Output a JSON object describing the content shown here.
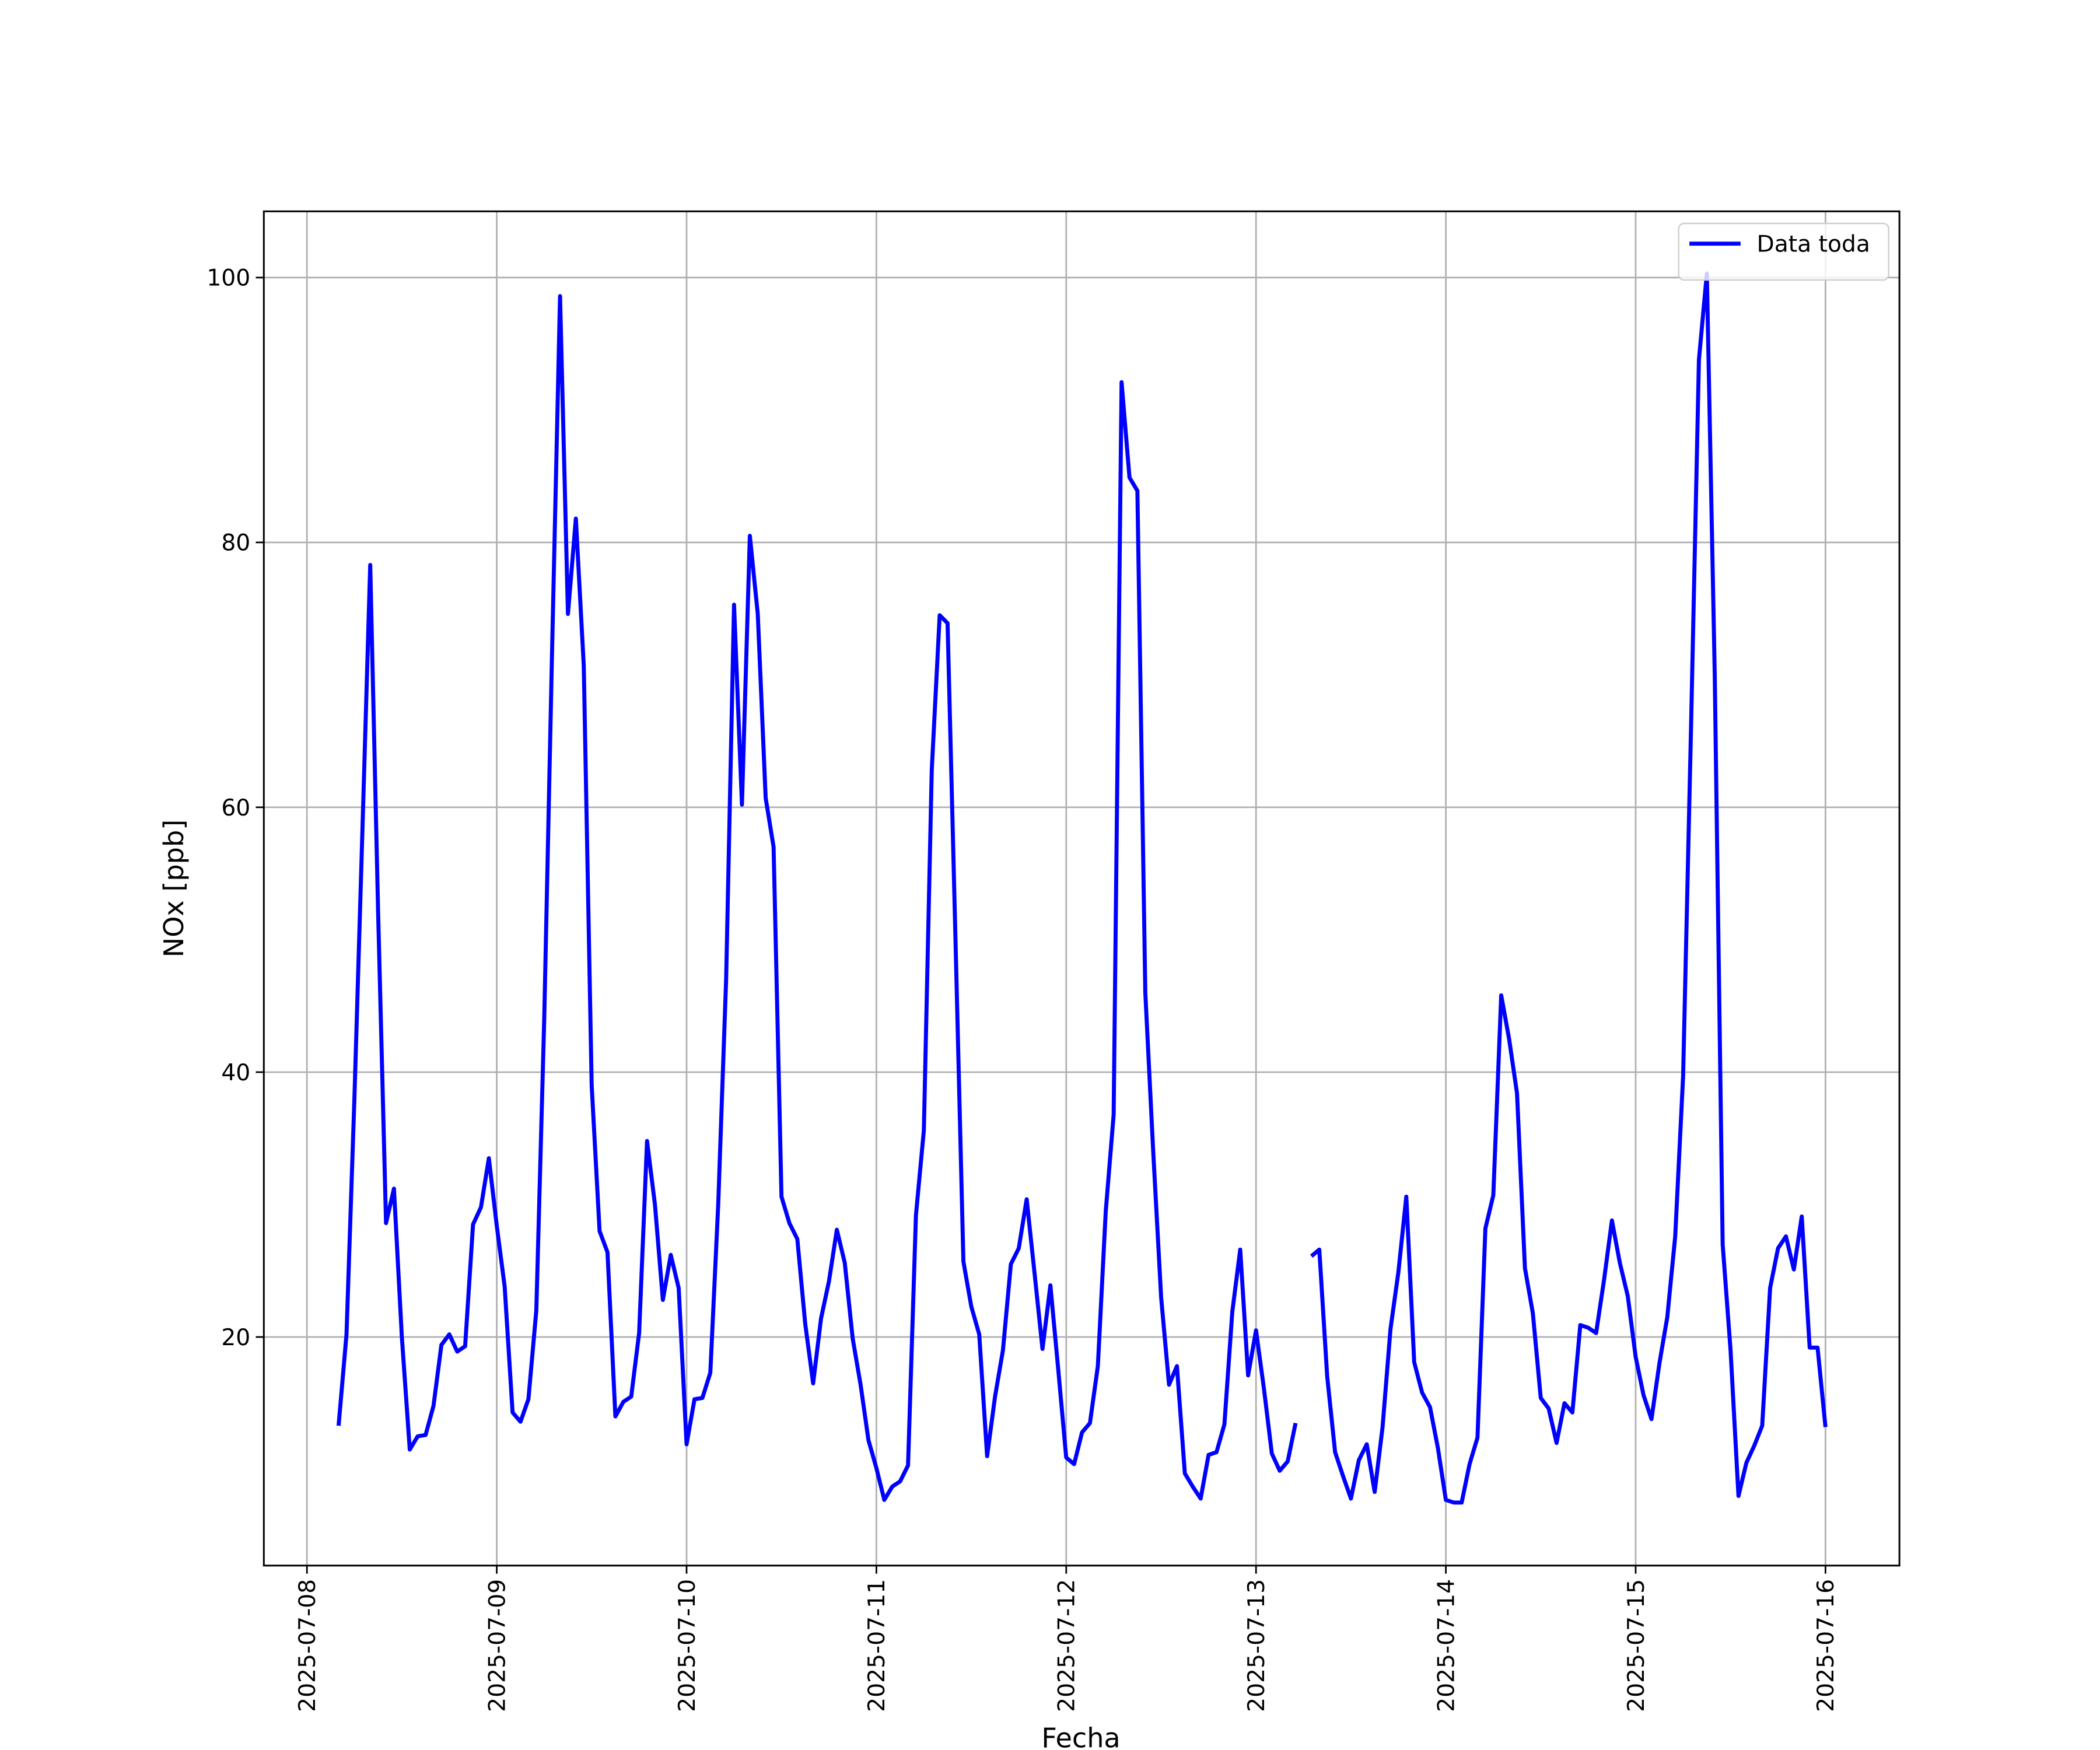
{
  "chart_data": {
    "type": "line",
    "xlabel": "Fecha",
    "ylabel": "NOx [ppb]",
    "x": [
      "2025-07-08 04:00",
      "2025-07-08 05:00",
      "2025-07-08 06:00",
      "2025-07-08 07:00",
      "2025-07-08 08:00",
      "2025-07-08 09:00",
      "2025-07-08 10:00",
      "2025-07-08 11:00",
      "2025-07-08 12:00",
      "2025-07-08 13:00",
      "2025-07-08 14:00",
      "2025-07-08 15:00",
      "2025-07-08 16:00",
      "2025-07-08 17:00",
      "2025-07-08 18:00",
      "2025-07-08 19:00",
      "2025-07-08 20:00",
      "2025-07-08 21:00",
      "2025-07-08 22:00",
      "2025-07-08 23:00",
      "2025-07-09 00:00",
      "2025-07-09 01:00",
      "2025-07-09 02:00",
      "2025-07-09 03:00",
      "2025-07-09 04:00",
      "2025-07-09 05:00",
      "2025-07-09 06:00",
      "2025-07-09 07:00",
      "2025-07-09 08:00",
      "2025-07-09 09:00",
      "2025-07-09 10:00",
      "2025-07-09 11:00",
      "2025-07-09 12:00",
      "2025-07-09 13:00",
      "2025-07-09 14:00",
      "2025-07-09 15:00",
      "2025-07-09 16:00",
      "2025-07-09 17:00",
      "2025-07-09 18:00",
      "2025-07-09 19:00",
      "2025-07-09 20:00",
      "2025-07-09 21:00",
      "2025-07-09 22:00",
      "2025-07-09 23:00",
      "2025-07-10 00:00",
      "2025-07-10 01:00",
      "2025-07-10 02:00",
      "2025-07-10 03:00",
      "2025-07-10 04:00",
      "2025-07-10 05:00",
      "2025-07-10 06:00",
      "2025-07-10 07:00",
      "2025-07-10 08:00",
      "2025-07-10 09:00",
      "2025-07-10 10:00",
      "2025-07-10 11:00",
      "2025-07-10 12:00",
      "2025-07-10 13:00",
      "2025-07-10 14:00",
      "2025-07-10 15:00",
      "2025-07-10 16:00",
      "2025-07-10 17:00",
      "2025-07-10 18:00",
      "2025-07-10 19:00",
      "2025-07-10 20:00",
      "2025-07-10 21:00",
      "2025-07-10 22:00",
      "2025-07-10 23:00",
      "2025-07-11 00:00",
      "2025-07-11 01:00",
      "2025-07-11 02:00",
      "2025-07-11 03:00",
      "2025-07-11 04:00",
      "2025-07-11 05:00",
      "2025-07-11 06:00",
      "2025-07-11 07:00",
      "2025-07-11 08:00",
      "2025-07-11 09:00",
      "2025-07-11 10:00",
      "2025-07-11 11:00",
      "2025-07-11 12:00",
      "2025-07-11 13:00",
      "2025-07-11 14:00",
      "2025-07-11 15:00",
      "2025-07-11 16:00",
      "2025-07-11 17:00",
      "2025-07-11 18:00",
      "2025-07-11 19:00",
      "2025-07-11 20:00",
      "2025-07-11 21:00",
      "2025-07-11 22:00",
      "2025-07-11 23:00",
      "2025-07-12 00:00",
      "2025-07-12 01:00",
      "2025-07-12 02:00",
      "2025-07-12 03:00",
      "2025-07-12 04:00",
      "2025-07-12 05:00",
      "2025-07-12 06:00",
      "2025-07-12 07:00",
      "2025-07-12 08:00",
      "2025-07-12 09:00",
      "2025-07-12 10:00",
      "2025-07-12 11:00",
      "2025-07-12 12:00",
      "2025-07-12 13:00",
      "2025-07-12 14:00",
      "2025-07-12 15:00",
      "2025-07-12 16:00",
      "2025-07-12 17:00",
      "2025-07-12 18:00",
      "2025-07-12 19:00",
      "2025-07-12 20:00",
      "2025-07-12 21:00",
      "2025-07-12 22:00",
      "2025-07-12 23:00",
      "2025-07-13 00:00",
      "2025-07-13 01:00",
      "2025-07-13 02:00",
      "2025-07-13 03:00",
      "2025-07-13 04:00",
      "2025-07-13 05:00",
      "2025-07-13 06:00",
      "2025-07-13 07:00",
      "2025-07-13 08:00",
      "2025-07-13 09:00",
      "2025-07-13 10:00",
      "2025-07-13 11:00",
      "2025-07-13 12:00",
      "2025-07-13 13:00",
      "2025-07-13 14:00",
      "2025-07-13 15:00",
      "2025-07-13 16:00",
      "2025-07-13 17:00",
      "2025-07-13 18:00",
      "2025-07-13 19:00",
      "2025-07-13 20:00",
      "2025-07-13 21:00",
      "2025-07-13 22:00",
      "2025-07-13 23:00",
      "2025-07-14 00:00",
      "2025-07-14 01:00",
      "2025-07-14 02:00",
      "2025-07-14 03:00",
      "2025-07-14 04:00",
      "2025-07-14 05:00",
      "2025-07-14 06:00",
      "2025-07-14 07:00",
      "2025-07-14 08:00",
      "2025-07-14 09:00",
      "2025-07-14 10:00",
      "2025-07-14 11:00",
      "2025-07-14 12:00",
      "2025-07-14 13:00",
      "2025-07-14 14:00",
      "2025-07-14 15:00",
      "2025-07-14 16:00",
      "2025-07-14 17:00",
      "2025-07-14 18:00",
      "2025-07-14 19:00",
      "2025-07-14 20:00",
      "2025-07-14 21:00",
      "2025-07-14 22:00",
      "2025-07-14 23:00",
      "2025-07-15 00:00",
      "2025-07-15 01:00",
      "2025-07-15 02:00",
      "2025-07-15 03:00",
      "2025-07-15 04:00",
      "2025-07-15 05:00",
      "2025-07-15 06:00",
      "2025-07-15 07:00",
      "2025-07-15 08:00",
      "2025-07-15 09:00",
      "2025-07-15 10:00",
      "2025-07-15 11:00",
      "2025-07-15 12:00",
      "2025-07-15 13:00",
      "2025-07-15 14:00",
      "2025-07-15 15:00",
      "2025-07-15 16:00",
      "2025-07-15 17:00",
      "2025-07-15 18:00",
      "2025-07-15 19:00",
      "2025-07-15 20:00",
      "2025-07-15 21:00",
      "2025-07-15 22:00",
      "2025-07-15 23:00",
      "2025-07-16 00:00"
    ],
    "series": [
      {
        "name": "Data toda",
        "color": "#0000ff",
        "values": [
          13.3,
          20.2,
          38,
          58,
          78.3,
          52,
          28.6,
          31.2,
          20,
          11.5,
          12.5,
          12.6,
          14.8,
          19.4,
          20.2,
          18.9,
          19.3,
          28.5,
          29.8,
          33.5,
          28.4,
          23.8,
          14.3,
          13.6,
          15.3,
          22,
          44,
          72,
          98.6,
          74.6,
          81.8,
          70.7,
          39,
          28,
          26.4,
          14,
          15.1,
          15.5,
          20.3,
          34.8,
          30,
          22.8,
          26.2,
          23.7,
          11.9,
          15.3,
          15.4,
          17.3,
          30,
          47,
          75.3,
          60.2,
          80.5,
          74.6,
          60.7,
          57,
          30.6,
          28.6,
          27.4,
          21,
          16.5,
          21.4,
          24.2,
          28.1,
          25.6,
          19.9,
          16.4,
          12.2,
          10.1,
          7.7,
          8.7,
          9.1,
          10.3,
          29.2,
          35.6,
          62.8,
          74.5,
          73.9,
          50,
          25.7,
          22.3,
          20.2,
          11,
          15.5,
          19,
          25.5,
          26.7,
          30.4,
          24.8,
          19.1,
          23.9,
          17.5,
          10.9,
          10.4,
          12.8,
          13.5,
          17.8,
          29.5,
          36.8,
          92.1,
          84.9,
          83.9,
          46,
          34,
          23,
          16.4,
          17.8,
          9.7,
          8.7,
          7.8,
          11.1,
          11.3,
          13.4,
          21.9,
          26.6,
          17.1,
          20.5,
          16.1,
          11.2,
          9.9,
          10.6,
          13.5,
          null,
          26.1,
          26.6,
          17,
          11.3,
          9.5,
          7.8,
          10.7,
          11.9,
          8.3,
          13.2,
          20.6,
          24.9,
          30.6,
          18.1,
          15.8,
          14.7,
          11.6,
          7.7,
          7.5,
          7.5,
          10.4,
          12.4,
          28.2,
          30.7,
          45.8,
          42.5,
          38.4,
          25.2,
          21.8,
          15.4,
          14.6,
          12,
          15,
          14.3,
          20.9,
          20.7,
          20.3,
          24.3,
          28.8,
          25.6,
          23.1,
          18.5,
          15.6,
          13.8,
          18,
          21.5,
          27.6,
          39.7,
          66,
          93.8,
          100.3,
          70,
          27,
          19,
          8,
          10.5,
          11.8,
          13.3,
          23.7,
          26.7,
          27.6,
          25.1,
          29.1,
          19.2,
          19.2,
          13.2
        ]
      }
    ],
    "xlim": [
      "2025-07-07 18:33",
      "2025-07-16 09:21"
    ],
    "xticks": [
      "2025-07-08",
      "2025-07-09",
      "2025-07-10",
      "2025-07-11",
      "2025-07-12",
      "2025-07-13",
      "2025-07-14",
      "2025-07-15",
      "2025-07-16"
    ],
    "ylim": [
      2.74,
      105
    ],
    "yticks": [
      20,
      40,
      60,
      80,
      100
    ],
    "grid": true,
    "legend": "upper right"
  }
}
